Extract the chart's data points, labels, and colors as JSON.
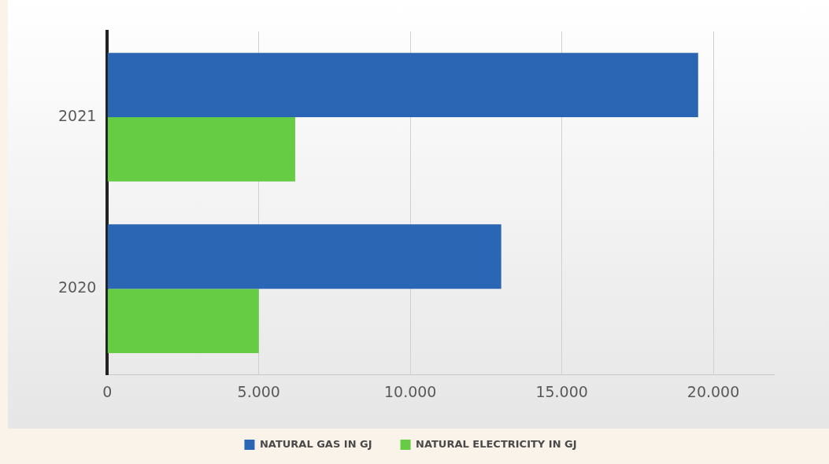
{
  "chart_data": {
    "type": "bar",
    "orientation": "horizontal",
    "categories": [
      "2021",
      "2020"
    ],
    "series": [
      {
        "name": "NATURAL GAS IN GJ",
        "color": "#2a66b4",
        "values": [
          19500,
          13000
        ]
      },
      {
        "name": "NATURAL ELECTRICITY IN GJ",
        "color": "#66cc44",
        "values": [
          6200,
          5000
        ]
      }
    ],
    "xlim": [
      0,
      22000
    ],
    "xticks": [
      0,
      {
        "value": 5000,
        "label": "5.000"
      },
      {
        "value": 10000,
        "label": "10.000"
      },
      {
        "value": 15000,
        "label": "15.000"
      },
      {
        "value": 20000,
        "label": "20.000"
      }
    ],
    "grid": "x",
    "legend": "bottom"
  }
}
